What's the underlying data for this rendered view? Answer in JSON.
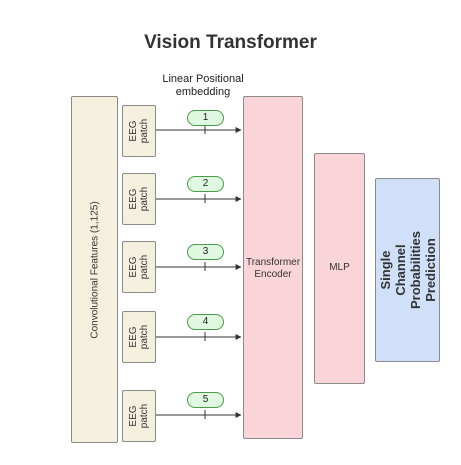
{
  "title": "Vision Transformer",
  "linear_positional_embedding": "Linear Positional\nembedding",
  "conv_features": "Convolutional Features (1,125)",
  "patches": [
    {
      "label": "EEG\npatch",
      "index": "1"
    },
    {
      "label": "EEG\npatch",
      "index": "2"
    },
    {
      "label": "EEG\npatch",
      "index": "3"
    },
    {
      "label": "EEG\npatch",
      "index": "4"
    },
    {
      "label": "EEG\npatch",
      "index": "5"
    }
  ],
  "encoder": "Transformer\nEncoder",
  "mlp": "MLP",
  "prediction": "Single Channel\nProbabilities Prediction"
}
